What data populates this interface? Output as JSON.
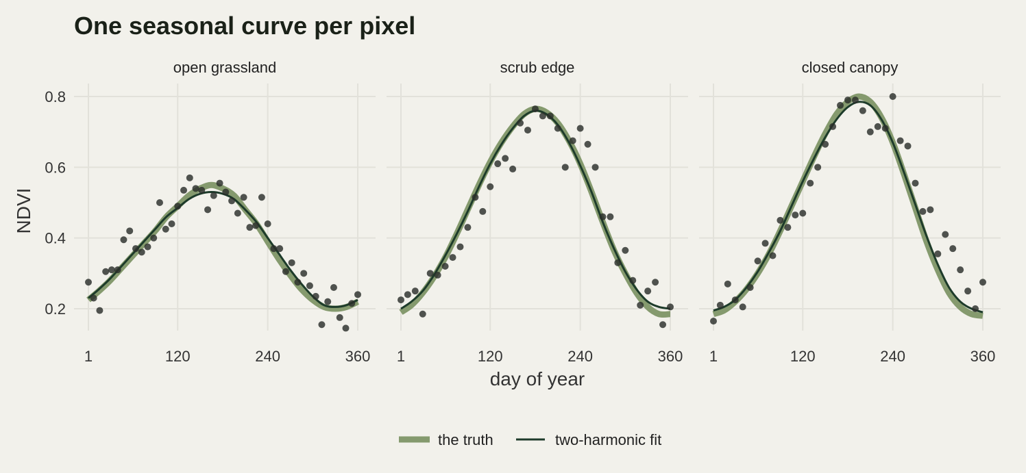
{
  "chart_data": {
    "type": "line",
    "title": "One seasonal curve per pixel",
    "xlabel": "day of year",
    "ylabel": "NDVI",
    "xlim": [
      1,
      360
    ],
    "ylim": [
      0.12,
      0.82
    ],
    "x_ticks": [
      1,
      120,
      240,
      360
    ],
    "x_tick_labels": [
      "1",
      "120",
      "240",
      "360"
    ],
    "y_ticks": [
      0.2,
      0.4,
      0.6,
      0.8
    ],
    "y_tick_labels": [
      "0.2",
      "0.4",
      "0.6",
      "0.8"
    ],
    "grid": true,
    "legend_position": "bottom",
    "legend": [
      {
        "label": "the truth",
        "color": "#859a6e"
      },
      {
        "label": "two-harmonic fit",
        "color": "#1d3b2a"
      }
    ],
    "colors": {
      "background": "#f2f1eb",
      "truth": "#859a6e",
      "fit": "#1d3b2a",
      "points": "#2b2e2b"
    },
    "panels": [
      {
        "name": "open grassland",
        "truth": {
          "x": [
            1,
            15,
            30,
            45,
            60,
            75,
            90,
            105,
            120,
            135,
            150,
            165,
            180,
            195,
            210,
            225,
            240,
            255,
            270,
            285,
            300,
            315,
            330,
            345,
            360
          ],
          "y": [
            0.225,
            0.25,
            0.28,
            0.315,
            0.35,
            0.385,
            0.42,
            0.46,
            0.49,
            0.52,
            0.54,
            0.55,
            0.54,
            0.52,
            0.48,
            0.44,
            0.39,
            0.34,
            0.295,
            0.255,
            0.225,
            0.205,
            0.2,
            0.205,
            0.22
          ]
        },
        "fit": {
          "x": [
            1,
            15,
            30,
            45,
            60,
            75,
            90,
            105,
            120,
            135,
            150,
            165,
            180,
            195,
            210,
            225,
            240,
            255,
            270,
            285,
            300,
            315,
            330,
            345,
            360
          ],
          "y": [
            0.23,
            0.255,
            0.285,
            0.32,
            0.355,
            0.39,
            0.425,
            0.46,
            0.485,
            0.51,
            0.525,
            0.53,
            0.525,
            0.51,
            0.48,
            0.445,
            0.4,
            0.355,
            0.31,
            0.27,
            0.235,
            0.21,
            0.205,
            0.21,
            0.225
          ]
        },
        "points": {
          "x": [
            1,
            8,
            16,
            24,
            32,
            40,
            48,
            56,
            64,
            72,
            80,
            88,
            96,
            104,
            112,
            120,
            128,
            136,
            144,
            152,
            160,
            168,
            176,
            184,
            192,
            200,
            208,
            216,
            224,
            232,
            240,
            248,
            256,
            264,
            272,
            280,
            288,
            296,
            304,
            312,
            320,
            328,
            336,
            344,
            352,
            360
          ],
          "y": [
            0.275,
            0.23,
            0.195,
            0.305,
            0.31,
            0.31,
            0.395,
            0.42,
            0.37,
            0.36,
            0.375,
            0.4,
            0.5,
            0.425,
            0.44,
            0.49,
            0.535,
            0.57,
            0.54,
            0.535,
            0.48,
            0.52,
            0.555,
            0.53,
            0.505,
            0.47,
            0.515,
            0.43,
            0.435,
            0.515,
            0.44,
            0.37,
            0.37,
            0.305,
            0.33,
            0.275,
            0.3,
            0.265,
            0.235,
            0.155,
            0.22,
            0.26,
            0.175,
            0.145,
            0.215,
            0.24
          ]
        }
      },
      {
        "name": "scrub edge",
        "truth": {
          "x": [
            1,
            15,
            30,
            45,
            60,
            75,
            90,
            105,
            120,
            135,
            150,
            165,
            180,
            195,
            210,
            225,
            240,
            255,
            270,
            285,
            300,
            315,
            330,
            345,
            360
          ],
          "y": [
            0.19,
            0.21,
            0.245,
            0.29,
            0.345,
            0.41,
            0.48,
            0.55,
            0.615,
            0.67,
            0.715,
            0.75,
            0.765,
            0.755,
            0.725,
            0.675,
            0.61,
            0.53,
            0.445,
            0.365,
            0.3,
            0.245,
            0.205,
            0.185,
            0.185
          ]
        },
        "fit": {
          "x": [
            1,
            15,
            30,
            45,
            60,
            75,
            90,
            105,
            120,
            135,
            150,
            165,
            180,
            195,
            210,
            225,
            240,
            255,
            270,
            285,
            300,
            315,
            330,
            345,
            360
          ],
          "y": [
            0.2,
            0.22,
            0.25,
            0.295,
            0.35,
            0.41,
            0.475,
            0.545,
            0.61,
            0.665,
            0.71,
            0.745,
            0.76,
            0.75,
            0.72,
            0.67,
            0.605,
            0.53,
            0.445,
            0.37,
            0.305,
            0.255,
            0.22,
            0.205,
            0.2
          ]
        },
        "points": {
          "x": [
            1,
            10,
            20,
            30,
            40,
            50,
            60,
            70,
            80,
            90,
            100,
            110,
            120,
            130,
            140,
            150,
            160,
            170,
            180,
            190,
            200,
            210,
            220,
            230,
            240,
            250,
            260,
            270,
            280,
            290,
            300,
            310,
            320,
            330,
            340,
            350,
            360
          ],
          "y": [
            0.225,
            0.24,
            0.25,
            0.185,
            0.3,
            0.295,
            0.32,
            0.345,
            0.375,
            0.43,
            0.515,
            0.475,
            0.545,
            0.61,
            0.625,
            0.595,
            0.725,
            0.705,
            0.765,
            0.745,
            0.745,
            0.71,
            0.6,
            0.675,
            0.71,
            0.665,
            0.6,
            0.46,
            0.46,
            0.33,
            0.365,
            0.28,
            0.21,
            0.25,
            0.275,
            0.155,
            0.205
          ]
        }
      },
      {
        "name": "closed canopy",
        "truth": {
          "x": [
            1,
            15,
            30,
            45,
            60,
            75,
            90,
            105,
            120,
            135,
            150,
            165,
            180,
            195,
            210,
            225,
            240,
            255,
            270,
            285,
            300,
            315,
            330,
            345,
            360
          ],
          "y": [
            0.185,
            0.195,
            0.22,
            0.255,
            0.3,
            0.355,
            0.42,
            0.49,
            0.56,
            0.63,
            0.695,
            0.75,
            0.785,
            0.8,
            0.785,
            0.74,
            0.67,
            0.58,
            0.485,
            0.39,
            0.31,
            0.245,
            0.205,
            0.185,
            0.18
          ]
        },
        "fit": {
          "x": [
            1,
            15,
            30,
            45,
            60,
            75,
            90,
            105,
            120,
            135,
            150,
            165,
            180,
            195,
            210,
            225,
            240,
            255,
            270,
            285,
            300,
            315,
            330,
            345,
            360
          ],
          "y": [
            0.195,
            0.205,
            0.225,
            0.26,
            0.305,
            0.36,
            0.42,
            0.49,
            0.56,
            0.625,
            0.685,
            0.735,
            0.77,
            0.785,
            0.775,
            0.735,
            0.67,
            0.585,
            0.495,
            0.405,
            0.325,
            0.26,
            0.22,
            0.2,
            0.19
          ]
        },
        "points": {
          "x": [
            1,
            10,
            20,
            30,
            40,
            50,
            60,
            70,
            80,
            90,
            100,
            110,
            120,
            130,
            140,
            150,
            160,
            170,
            180,
            190,
            200,
            210,
            220,
            230,
            240,
            250,
            260,
            270,
            280,
            290,
            300,
            310,
            320,
            330,
            340,
            350,
            360
          ],
          "y": [
            0.165,
            0.21,
            0.27,
            0.225,
            0.205,
            0.26,
            0.335,
            0.385,
            0.35,
            0.45,
            0.43,
            0.465,
            0.47,
            0.555,
            0.6,
            0.665,
            0.715,
            0.775,
            0.79,
            0.79,
            0.76,
            0.7,
            0.715,
            0.71,
            0.8,
            0.675,
            0.66,
            0.555,
            0.475,
            0.48,
            0.355,
            0.41,
            0.37,
            0.31,
            0.25,
            0.2,
            0.275
          ]
        }
      }
    ]
  }
}
